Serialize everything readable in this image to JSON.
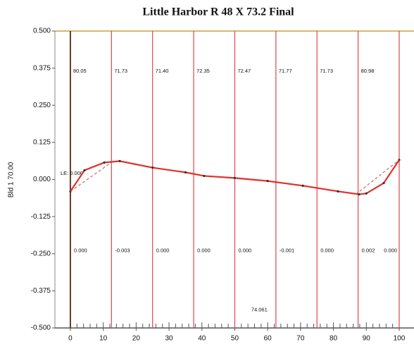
{
  "chart_data": {
    "type": "line",
    "title": "Little Harbor    R  48 X 73.2 Final",
    "ylabel": "Bld 1 70.00",
    "xlim": [
      -4.7,
      104.5
    ],
    "ylim": [
      -0.5,
      0.5
    ],
    "xticks": [
      0,
      10,
      20,
      30,
      40,
      50,
      60,
      70,
      80,
      90,
      100
    ],
    "yticks": [
      {
        "value": 0.5,
        "label": "0.500"
      },
      {
        "value": 0.375,
        "label": "0.375"
      },
      {
        "value": 0.25,
        "label": "0.250"
      },
      {
        "value": 0.125,
        "label": "0.125"
      },
      {
        "value": 0,
        "label": "0.000"
      },
      {
        "value": -0.125,
        "label": "-0.125"
      },
      {
        "value": -0.25,
        "label": "-0.250"
      },
      {
        "value": -0.375,
        "label": "-0.375"
      },
      {
        "value": -0.5,
        "label": "-0.500"
      }
    ],
    "stations": [
      0,
      12.5,
      25,
      37.5,
      50,
      62.5,
      75,
      87.5,
      100
    ],
    "station_color": "#e0454a",
    "segment_labels": [
      {
        "value": 80.05,
        "label": "80.05"
      },
      {
        "value": 71.73,
        "label": "71.73"
      },
      {
        "value": 71.4,
        "label": "71.40"
      },
      {
        "value": 72.35,
        "label": "72.35"
      },
      {
        "value": 72.47,
        "label": "72.47"
      },
      {
        "value": 71.77,
        "label": "71.77"
      },
      {
        "value": 71.73,
        "label": "71.73"
      },
      {
        "value": 80.98,
        "label": "80.98"
      }
    ],
    "station_labels": [
      {
        "value": 0,
        "label": "0.000"
      },
      {
        "value": -0.003,
        "label": "-0.003"
      },
      {
        "value": 0,
        "label": "0.000"
      },
      {
        "value": 0,
        "label": "0.000"
      },
      {
        "value": 0,
        "label": "0.000"
      },
      {
        "value": -0.001,
        "label": "-0.001"
      },
      {
        "value": 0,
        "label": "0.000"
      },
      {
        "value": 0.002,
        "label": "0.002"
      },
      {
        "value": 0,
        "label": "0.000"
      }
    ],
    "annotations": [
      {
        "value": 0,
        "label": "LE: 0.000",
        "x": 0,
        "y": 0.02
      },
      {
        "value": 74.061,
        "label": "74.061",
        "x": 58,
        "y": -0.44
      }
    ],
    "series": [
      {
        "color": "#e0302a",
        "style": "solid",
        "x": [
          0,
          4.3,
          10.3,
          15,
          25,
          35,
          40.7,
          50,
          60,
          70.7,
          81.4,
          87.8,
          90,
          95.3,
          100
        ],
        "values": [
          -0.04,
          0.031,
          0.057,
          0.062,
          0.04,
          0.024,
          0.012,
          0.005,
          -0.005,
          -0.021,
          -0.04,
          -0.05,
          -0.047,
          -0.012,
          0.066
        ]
      },
      {
        "color": "#c0504d",
        "style": "dashed",
        "x": [
          0,
          12.8,
          null,
          86.8,
          100
        ],
        "values": [
          -0.04,
          0.06,
          null,
          -0.05,
          0.066
        ]
      }
    ]
  }
}
